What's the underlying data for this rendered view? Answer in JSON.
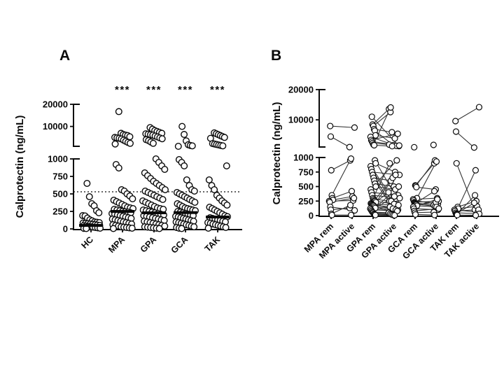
{
  "page": {
    "background": "#ffffff",
    "foreground": "#0a0a0a"
  },
  "panel_labels": {
    "a": "A",
    "b": "B"
  },
  "chart_data": [
    {
      "panel": "A",
      "type": "scatter",
      "ylabel": "Calprotectin (ng/mL)",
      "categories": [
        "HC",
        "MPA",
        "GPA",
        "GCA",
        "TAK"
      ],
      "significance": [
        "",
        "***",
        "***",
        "***",
        "***"
      ],
      "yticks_lower": [
        0,
        250,
        500,
        750,
        1000
      ],
      "yticks_upper": [
        10000,
        20000
      ],
      "axis_break": [
        1000,
        20000
      ],
      "ylim": [
        0,
        20000
      ],
      "dotted_line_value": 530,
      "medians": [
        50,
        250,
        230,
        233,
        170
      ],
      "values": {
        "HC": [
          650,
          460,
          360,
          330,
          260,
          230,
          190,
          185,
          155,
          130,
          115,
          100,
          95,
          90,
          85,
          80,
          75,
          70,
          65,
          60,
          55,
          50,
          45,
          40,
          35,
          30,
          25,
          20,
          15,
          10,
          8,
          5
        ],
        "MPA": [
          16500,
          7000,
          6500,
          6200,
          6000,
          5500,
          5200,
          5000,
          4800,
          4500,
          4000,
          3500,
          3000,
          2600,
          2300,
          920,
          870,
          560,
          540,
          500,
          470,
          430,
          410,
          390,
          370,
          350,
          330,
          310,
          300,
          290,
          280,
          270,
          260,
          250,
          245,
          240,
          230,
          220,
          210,
          200,
          190,
          180,
          170,
          160,
          150,
          140,
          130,
          120,
          110,
          100,
          90,
          80,
          70,
          60,
          50,
          40,
          30,
          25,
          20,
          15,
          10,
          5
        ],
        "GPA": [
          9500,
          8800,
          8200,
          7800,
          7400,
          7000,
          6800,
          6600,
          6400,
          6200,
          5800,
          5400,
          5000,
          4600,
          4200,
          3800,
          3200,
          2600,
          1000,
          950,
          900,
          850,
          800,
          760,
          720,
          680,
          650,
          620,
          590,
          560,
          540,
          520,
          500,
          480,
          460,
          440,
          420,
          400,
          380,
          360,
          340,
          320,
          300,
          290,
          280,
          270,
          260,
          250,
          240,
          230,
          220,
          210,
          200,
          190,
          180,
          170,
          160,
          150,
          140,
          130,
          120,
          110,
          100,
          90,
          80,
          70,
          60,
          50,
          40,
          30,
          25,
          20,
          15,
          10,
          5
        ],
        "GCA": [
          10000,
          6500,
          3700,
          2000,
          1700,
          1500,
          1300,
          990,
          950,
          900,
          700,
          620,
          560,
          540,
          520,
          500,
          480,
          460,
          440,
          420,
          400,
          380,
          360,
          340,
          320,
          300,
          290,
          280,
          270,
          260,
          250,
          240,
          230,
          220,
          210,
          200,
          190,
          180,
          170,
          160,
          150,
          140,
          130,
          120,
          110,
          100,
          90,
          80,
          70,
          60,
          50,
          40,
          30,
          20,
          10,
          5
        ],
        "TAK": [
          7200,
          6800,
          6400,
          6000,
          5600,
          5200,
          4800,
          2500,
          2300,
          2100,
          1900,
          1700,
          1500,
          900,
          700,
          620,
          560,
          480,
          440,
          400,
          370,
          340,
          310,
          290,
          270,
          250,
          230,
          210,
          190,
          175,
          160,
          150,
          140,
          130,
          120,
          110,
          100,
          90,
          80,
          70,
          60,
          50,
          40,
          30,
          20,
          10
        ]
      }
    },
    {
      "panel": "B",
      "type": "paired-scatter",
      "ylabel": "Calprotectin (ng/mL)",
      "categories": [
        "MPA rem",
        "MPA active",
        "GPA rem",
        "GPA active",
        "GCA rem",
        "GCA active",
        "TAK rem",
        "TAK active"
      ],
      "yticks_lower": [
        0,
        250,
        500,
        750,
        1000
      ],
      "yticks_upper": [
        10000,
        20000
      ],
      "axis_break": [
        1000,
        20000
      ],
      "ylim": [
        0,
        20000
      ],
      "pairs": {
        "MPA": [
          [
            8000,
            7500
          ],
          [
            4600,
            1200
          ],
          [
            780,
            950
          ],
          [
            350,
            980
          ],
          [
            300,
            420
          ],
          [
            270,
            330
          ],
          [
            250,
            260
          ],
          [
            230,
            300
          ],
          [
            150,
            90
          ],
          [
            100,
            130
          ],
          [
            30,
            180
          ],
          [
            10,
            10
          ]
        ],
        "GPA": [
          [
            11000,
            1500
          ],
          [
            8500,
            13500
          ],
          [
            8000,
            12500
          ],
          [
            7000,
            6000
          ],
          [
            6500,
            1800
          ],
          [
            5000,
            4000
          ],
          [
            4500,
            1600
          ],
          [
            3500,
            5500
          ],
          [
            3000,
            1700
          ],
          [
            2500,
            2000
          ],
          [
            2000,
            14000
          ],
          [
            1800,
            1500
          ],
          [
            950,
            400
          ],
          [
            900,
            750
          ],
          [
            850,
            200
          ],
          [
            800,
            100
          ],
          [
            750,
            700
          ],
          [
            700,
            250
          ],
          [
            650,
            600
          ],
          [
            600,
            150
          ],
          [
            550,
            500
          ],
          [
            500,
            450
          ],
          [
            450,
            950
          ],
          [
            400,
            350
          ],
          [
            350,
            300
          ],
          [
            300,
            900
          ],
          [
            280,
            250
          ],
          [
            260,
            650
          ],
          [
            250,
            200
          ],
          [
            230,
            700
          ],
          [
            210,
            90
          ],
          [
            200,
            180
          ],
          [
            190,
            400
          ],
          [
            180,
            150
          ],
          [
            170,
            60
          ],
          [
            150,
            120
          ],
          [
            130,
            330
          ],
          [
            120,
            100
          ],
          [
            100,
            80
          ],
          [
            80,
            500
          ],
          [
            60,
            50
          ],
          [
            50,
            30
          ],
          [
            30,
            20
          ],
          [
            20,
            10
          ],
          [
            10,
            5
          ]
        ],
        "GCA": [
          [
            1150,
            null
          ],
          [
            null,
            1900
          ],
          [
            520,
            900
          ],
          [
            510,
            950
          ],
          [
            490,
            450
          ],
          [
            300,
            930
          ],
          [
            280,
            300
          ],
          [
            260,
            200
          ],
          [
            230,
            250
          ],
          [
            220,
            180
          ],
          [
            210,
            420
          ],
          [
            200,
            160
          ],
          [
            190,
            230
          ],
          [
            170,
            150
          ],
          [
            150,
            280
          ],
          [
            120,
            100
          ],
          [
            80,
            120
          ],
          [
            50,
            60
          ],
          [
            20,
            10
          ]
        ],
        "TAK": [
          [
            9600,
            14100
          ],
          [
            6200,
            1050
          ],
          [
            900,
            100
          ],
          [
            100,
            780
          ],
          [
            150,
            250
          ],
          [
            120,
            160
          ],
          [
            100,
            60
          ],
          [
            80,
            100
          ],
          [
            50,
            30
          ],
          [
            30,
            220
          ],
          [
            20,
            350
          ],
          [
            10,
            5
          ]
        ]
      }
    }
  ]
}
